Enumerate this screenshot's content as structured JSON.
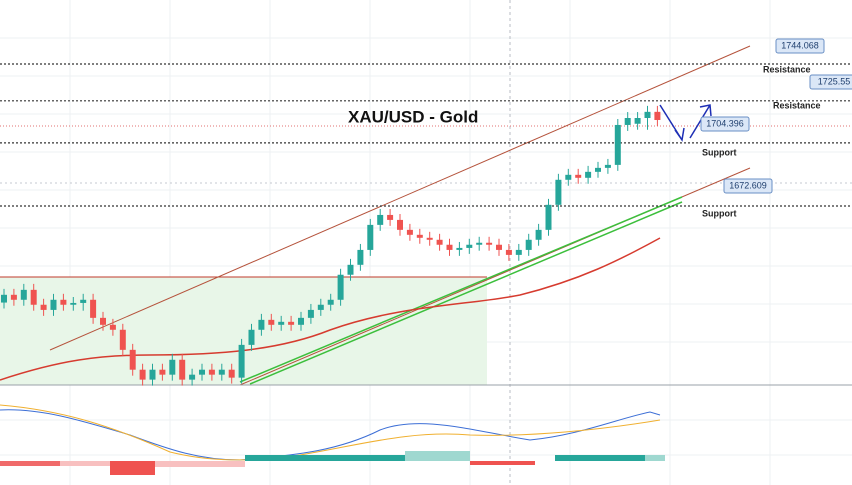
{
  "chart_data": {
    "type": "candlestick",
    "title": "XAU/USD - Gold",
    "ylim": [
      1582.5,
      1776.3
    ],
    "up_color": "#26a69a",
    "down_color": "#ef5350",
    "open": [
      1624.0,
      1627.9,
      1625.4,
      1630.4,
      1622.9,
      1620.3,
      1625.4,
      1622.9,
      1623.8,
      1625.4,
      1616.3,
      1612.8,
      1610.3,
      1600.2,
      1590.2,
      1585.2,
      1590.2,
      1587.7,
      1595.2,
      1585.2,
      1587.7,
      1590.2,
      1587.7,
      1590.2,
      1586.2,
      1602.7,
      1610.3,
      1615.3,
      1612.8,
      1614.3,
      1612.8,
      1616.3,
      1620.3,
      1622.9,
      1625.4,
      1638.0,
      1643.0,
      1650.5,
      1663.1,
      1668.1,
      1665.6,
      1660.6,
      1658.1,
      1656.6,
      1655.6,
      1653.1,
      1650.5,
      1651.5,
      1653.1,
      1654.1,
      1653.1,
      1650.5,
      1648.0,
      1650.5,
      1655.6,
      1660.6,
      1673.2,
      1685.8,
      1688.3,
      1686.8,
      1689.8,
      1691.8,
      1693.3,
      1713.4,
      1714.0,
      1716.9,
      1720.0
    ],
    "high": [
      1630.9,
      1630.9,
      1633.4,
      1633.4,
      1625.9,
      1628.4,
      1628.4,
      1626.8,
      1628.4,
      1628.4,
      1619.3,
      1615.8,
      1613.3,
      1603.2,
      1593.2,
      1593.2,
      1593.2,
      1598.2,
      1598.2,
      1590.7,
      1593.2,
      1593.2,
      1593.2,
      1593.2,
      1605.7,
      1613.3,
      1618.3,
      1618.3,
      1617.3,
      1617.3,
      1619.3,
      1623.3,
      1625.9,
      1628.4,
      1641.0,
      1646.0,
      1653.5,
      1666.1,
      1671.1,
      1671.1,
      1668.6,
      1663.6,
      1661.1,
      1659.6,
      1658.6,
      1656.1,
      1654.5,
      1656.1,
      1657.1,
      1657.1,
      1656.1,
      1653.5,
      1653.5,
      1658.6,
      1663.6,
      1676.2,
      1688.8,
      1691.3,
      1691.3,
      1692.8,
      1694.8,
      1696.3,
      1716.4,
      1719.9,
      1719.9,
      1723.0,
      1723.0
    ],
    "low": [
      1621.0,
      1622.4,
      1622.4,
      1619.9,
      1617.3,
      1617.3,
      1619.9,
      1619.9,
      1619.9,
      1613.3,
      1609.8,
      1607.3,
      1597.2,
      1587.2,
      1582.2,
      1582.2,
      1584.7,
      1584.7,
      1582.2,
      1582.2,
      1584.7,
      1584.7,
      1584.7,
      1583.2,
      1583.2,
      1599.7,
      1607.3,
      1609.8,
      1609.8,
      1609.8,
      1609.8,
      1613.3,
      1617.3,
      1619.9,
      1622.4,
      1635.0,
      1640.0,
      1647.5,
      1660.1,
      1662.6,
      1657.6,
      1655.1,
      1653.6,
      1652.6,
      1650.1,
      1647.5,
      1647.5,
      1648.5,
      1650.1,
      1650.1,
      1647.5,
      1645.0,
      1645.0,
      1647.5,
      1652.6,
      1657.6,
      1670.2,
      1682.8,
      1683.8,
      1683.8,
      1686.8,
      1688.8,
      1690.3,
      1710.4,
      1711.0,
      1711.0,
      1712.9
    ],
    "close": [
      1627.9,
      1625.4,
      1630.4,
      1622.9,
      1620.3,
      1625.4,
      1622.9,
      1623.8,
      1625.4,
      1616.3,
      1612.8,
      1610.3,
      1600.2,
      1590.2,
      1585.2,
      1590.2,
      1587.7,
      1595.2,
      1585.2,
      1587.7,
      1590.2,
      1587.7,
      1590.2,
      1586.2,
      1602.7,
      1610.3,
      1615.3,
      1612.8,
      1614.3,
      1612.8,
      1616.3,
      1620.3,
      1622.9,
      1625.4,
      1638.0,
      1643.0,
      1650.5,
      1663.1,
      1668.1,
      1665.6,
      1660.6,
      1658.1,
      1656.6,
      1655.6,
      1653.1,
      1650.5,
      1651.5,
      1653.1,
      1654.1,
      1653.1,
      1650.5,
      1648.0,
      1650.5,
      1655.6,
      1660.6,
      1673.2,
      1685.8,
      1688.3,
      1686.8,
      1689.8,
      1691.8,
      1693.3,
      1713.4,
      1716.9,
      1716.9,
      1720.0,
      1715.9
    ],
    "levels": {
      "values": [
        1744.068,
        1725.55,
        1704.396,
        1672.609
      ],
      "names": [
        "Resistance",
        "Resistance",
        "Support",
        "Support"
      ]
    }
  }
}
